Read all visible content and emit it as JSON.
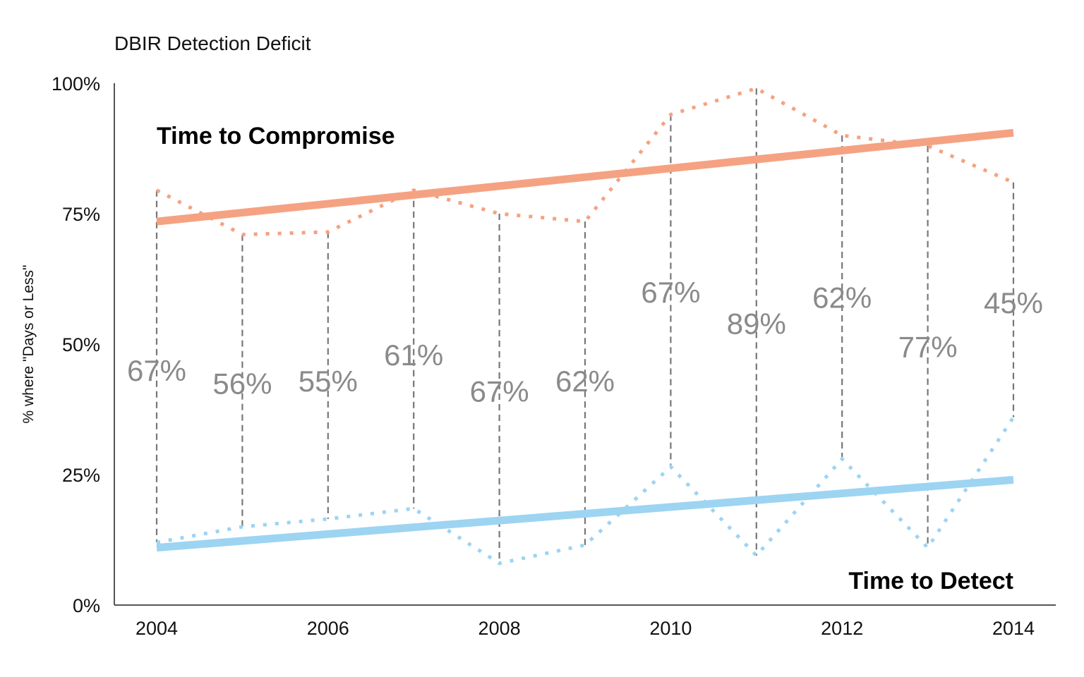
{
  "chart_data": {
    "type": "line",
    "title": "DBIR Detection Deficit",
    "xlabel": "",
    "ylabel": "% where \"Days or Less\"",
    "x": [
      2004,
      2005,
      2006,
      2007,
      2008,
      2009,
      2010,
      2011,
      2012,
      2013,
      2014
    ],
    "xticks": [
      "2004",
      "2006",
      "2008",
      "2010",
      "2012",
      "2014"
    ],
    "yticks": [
      "0%",
      "25%",
      "50%",
      "75%",
      "100%"
    ],
    "ylim": [
      0,
      100
    ],
    "grid": false,
    "series": [
      {
        "name": "Time to Compromise",
        "color": "#f5a282",
        "style": "dotted",
        "values": [
          79.5,
          71,
          71.5,
          79.5,
          75,
          73.5,
          94,
          99,
          90,
          88,
          81
        ]
      },
      {
        "name": "Time to Detect",
        "color": "#9dd4f2",
        "style": "dotted",
        "values": [
          12,
          15,
          16.5,
          18.5,
          8,
          11.5,
          26.5,
          9.5,
          28,
          11,
          36
        ]
      }
    ],
    "trendlines": [
      {
        "color": "#f5a282",
        "start": [
          2004,
          73.5
        ],
        "end": [
          2014,
          90.5
        ]
      },
      {
        "color": "#9dd4f2",
        "start": [
          2004,
          11
        ],
        "end": [
          2014,
          24
        ]
      }
    ],
    "gap_labels": [
      "67%",
      "56%",
      "55%",
      "61%",
      "67%",
      "62%",
      "67%",
      "89%",
      "62%",
      "77%",
      "45%"
    ],
    "gap_label_y": [
      45,
      42.5,
      43,
      48,
      41,
      43,
      60,
      54,
      59,
      49.5,
      58
    ]
  }
}
